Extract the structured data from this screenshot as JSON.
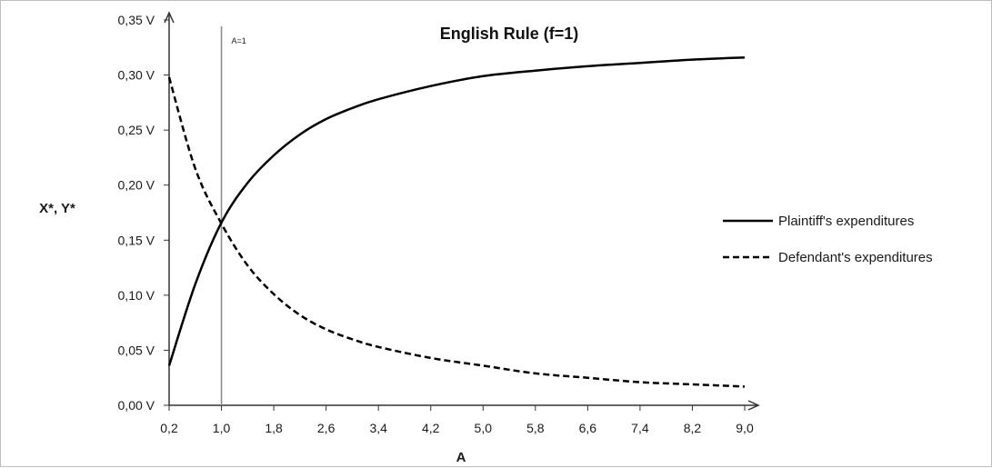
{
  "chart_data": {
    "type": "line",
    "title": "English Rule (f=1)",
    "xlabel": "A",
    "ylabel": "X*, Y*",
    "xlim": [
      0.2,
      9.0
    ],
    "ylim": [
      0,
      0.35
    ],
    "x_ticks": [
      "0,2",
      "1,0",
      "1,8",
      "2,6",
      "3,4",
      "4,2",
      "5,0",
      "5,8",
      "6,6",
      "7,4",
      "8,2",
      "9,0"
    ],
    "y_ticks": [
      "0,00 V",
      "0,05 V",
      "0,10 V",
      "0,15 V",
      "0,20 V",
      "0,25 V",
      "0,30 V",
      "0,35 V"
    ],
    "x_tick_values": [
      0.2,
      1.0,
      1.8,
      2.6,
      3.4,
      4.2,
      5.0,
      5.8,
      6.6,
      7.4,
      8.2,
      9.0
    ],
    "y_tick_values": [
      0,
      0.05,
      0.1,
      0.15,
      0.2,
      0.25,
      0.3,
      0.35
    ],
    "annotation": {
      "label": "A=1",
      "x": 1.0
    },
    "legend_position": "right",
    "grid": false,
    "x": [
      0.2,
      0.6,
      1.0,
      1.4,
      1.8,
      2.2,
      2.6,
      3.0,
      3.4,
      4.2,
      5.0,
      5.8,
      6.6,
      7.4,
      8.2,
      9.0
    ],
    "series": [
      {
        "name": "Plaintiff's expenditures",
        "style": "solid",
        "color": "#000000",
        "values": [
          0.036,
          0.11,
          0.166,
          0.202,
          0.227,
          0.246,
          0.26,
          0.27,
          0.278,
          0.29,
          0.299,
          0.304,
          0.308,
          0.311,
          0.314,
          0.316
        ]
      },
      {
        "name": "Defendant's expenditures",
        "style": "dashed",
        "color": "#000000",
        "values": [
          0.298,
          0.215,
          0.165,
          0.127,
          0.101,
          0.082,
          0.069,
          0.06,
          0.053,
          0.043,
          0.036,
          0.029,
          0.025,
          0.021,
          0.019,
          0.017
        ]
      }
    ]
  }
}
